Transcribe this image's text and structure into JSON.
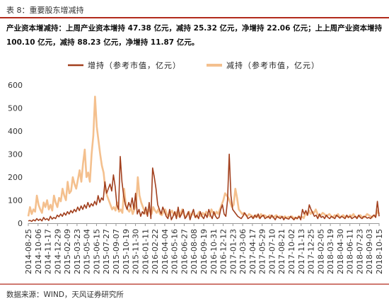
{
  "header": {
    "table_label": "表 8：重要股东增减持",
    "summary": "产业资本增减持：上周产业资本增持 47.38 亿元，减持 25.32 亿元，净增持 22.06 亿元；上上周产业资本增持 100.10 亿元，减持 88.23 亿元，净增持 11.87 亿元。"
  },
  "footer": {
    "source": "数据来源：WIND，天风证券研究所"
  },
  "colors": {
    "increase": "#a2401e",
    "decrease": "#f4c08e",
    "rule": "#b22a1c",
    "axis": "#999999"
  },
  "chart_data": {
    "type": "line",
    "title": "",
    "xlabel": "",
    "ylabel": "",
    "ylim": [
      0,
      600
    ],
    "yticks": [
      0,
      100,
      200,
      300,
      400,
      500,
      600
    ],
    "grid": false,
    "legend_position": "top-center",
    "x_tick_labels": [
      "2014-08-25",
      "2014-10-06",
      "2014-11-17",
      "2014-12-29",
      "2015-02-09",
      "2015-03-23",
      "2015-05-04",
      "2015-06-15",
      "2015-07-27",
      "2015-09-07",
      "2015-10-19",
      "2015-11-30",
      "2016-01-11",
      "2016-02-22",
      "2016-04-04",
      "2016-05-16",
      "2016-06-27",
      "2016-08-08",
      "2016-09-19",
      "2016-10-31",
      "2016-12-12",
      "2017-01-23",
      "2017-03-06",
      "2017-04-17",
      "2017-05-29",
      "2017-07-10",
      "2017-08-21",
      "2017-10-02",
      "2017-11-13",
      "2017-12-25",
      "2018-02-05",
      "2018-03-19",
      "2018-04-30",
      "2018-06-11",
      "2018-07-23",
      "2018-09-03",
      "2018-10-15"
    ],
    "series": [
      {
        "name": "增持（参考市值，亿元）",
        "values": [
          10,
          12,
          8,
          15,
          10,
          20,
          12,
          18,
          10,
          25,
          15,
          20,
          12,
          30,
          18,
          25,
          20,
          35,
          28,
          40,
          30,
          45,
          35,
          50,
          40,
          55,
          45,
          60,
          50,
          70,
          55,
          75,
          60,
          80,
          65,
          90,
          70,
          85,
          75,
          95,
          80,
          120,
          90,
          110,
          100,
          180,
          130,
          150,
          170,
          140,
          210,
          160,
          80,
          60,
          290,
          180,
          120,
          80,
          60,
          90,
          70,
          110,
          60,
          130,
          40,
          60,
          30,
          50,
          40,
          70,
          30,
          90,
          20,
          240,
          200,
          150,
          80,
          60,
          40,
          70,
          50,
          30,
          20,
          60,
          15,
          30,
          50,
          20,
          70,
          25,
          40,
          60,
          20,
          30,
          50,
          15,
          40,
          60,
          25,
          35,
          20,
          50,
          30,
          20,
          40,
          25,
          60,
          35,
          20,
          50,
          30,
          20,
          25,
          60,
          80,
          40,
          30,
          100,
          300,
          120,
          60,
          50,
          40,
          30,
          25,
          20,
          30,
          45,
          35,
          20,
          25,
          30,
          20,
          35,
          25,
          40,
          20,
          30,
          35,
          20,
          25,
          30,
          20,
          35,
          25,
          15,
          30,
          25,
          20,
          30,
          15,
          25,
          20,
          18,
          30,
          22,
          15,
          25,
          20,
          30,
          15,
          60,
          40,
          55,
          35,
          80,
          60,
          45,
          30,
          35,
          20,
          40,
          25,
          30,
          20,
          35,
          25,
          20,
          30,
          25,
          20,
          35,
          28,
          22,
          30,
          25,
          20,
          35,
          25,
          30,
          20,
          25,
          30,
          20,
          35,
          25,
          20,
          30,
          28,
          22,
          25,
          20,
          30,
          35,
          25,
          95,
          30
        ]
      },
      {
        "name": "减持（参考市值，亿元）",
        "values": [
          30,
          70,
          40,
          60,
          50,
          120,
          80,
          60,
          45,
          90,
          70,
          100,
          60,
          80,
          55,
          120,
          90,
          70,
          110,
          95,
          150,
          120,
          100,
          180,
          130,
          140,
          200,
          170,
          150,
          190,
          230,
          180,
          260,
          320,
          200,
          220,
          180,
          300,
          380,
          550,
          420,
          360,
          300,
          250,
          220,
          150,
          120,
          100,
          80,
          60,
          70,
          55,
          90,
          50,
          60,
          45,
          150,
          80,
          60,
          50,
          70,
          40,
          60,
          80,
          200,
          120,
          90,
          70,
          50,
          40,
          60,
          50,
          40,
          70,
          55,
          45,
          60,
          40,
          35,
          50,
          60,
          40,
          30,
          45,
          55,
          35,
          40,
          50,
          30,
          45,
          60,
          35,
          25,
          40,
          50,
          30,
          45,
          35,
          25,
          40,
          50,
          30,
          45,
          35,
          50,
          40,
          30,
          60,
          45,
          35,
          50,
          40,
          60,
          80,
          100,
          130,
          120,
          110,
          90,
          70,
          80,
          150,
          110,
          60,
          50,
          40,
          45,
          35,
          30,
          40,
          35,
          30,
          25,
          35,
          30,
          25,
          40,
          30,
          35,
          30,
          25,
          35,
          30,
          25,
          30,
          35,
          25,
          30,
          28,
          25,
          30,
          22,
          28,
          25,
          30,
          22,
          25,
          20,
          30,
          25,
          28,
          22,
          45,
          35,
          55,
          40,
          50,
          45,
          60,
          40,
          30,
          35,
          45,
          40,
          30,
          35,
          40,
          30,
          25,
          35,
          30,
          40,
          25,
          30,
          35,
          28,
          30,
          25,
          35,
          30,
          40,
          28,
          25,
          30,
          35,
          28,
          25,
          30,
          40,
          35,
          30,
          25,
          35,
          30,
          55,
          40
        ]
      }
    ]
  }
}
